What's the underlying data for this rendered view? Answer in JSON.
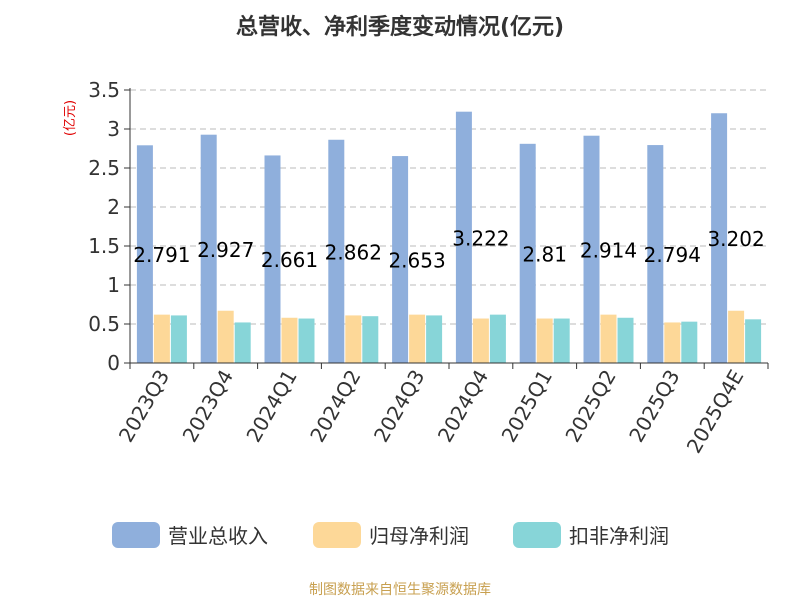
{
  "chart_data": {
    "type": "bar",
    "title": "总营收、净利季度变动情况(亿元)",
    "ylabel": "(亿元)",
    "ylim": [
      0,
      3.5
    ],
    "yticks": [
      0,
      0.5,
      1,
      1.5,
      2,
      2.5,
      3,
      3.5
    ],
    "ytick_labels": [
      "0",
      "0.5",
      "1",
      "1.5",
      "2",
      "2.5",
      "3",
      "3.5"
    ],
    "grid": true,
    "legend_position": "bottom",
    "categories": [
      "2023Q3",
      "2023Q4",
      "2024Q1",
      "2024Q2",
      "2024Q3",
      "2024Q4",
      "2025Q1",
      "2025Q2",
      "2025Q3",
      "2025Q4E"
    ],
    "series": [
      {
        "name": "营业总收入",
        "color": "#8fafdc",
        "values": [
          2.791,
          2.927,
          2.661,
          2.862,
          2.653,
          3.222,
          2.81,
          2.914,
          2.794,
          3.202
        ],
        "data_labels": [
          "2.791",
          "2.927",
          "2.661",
          "2.862",
          "2.653",
          "3.222",
          "2.81",
          "2.914",
          "2.794",
          "3.202"
        ]
      },
      {
        "name": "归母净利润",
        "color": "#fdd898",
        "values": [
          0.62,
          0.67,
          0.58,
          0.61,
          0.62,
          0.57,
          0.57,
          0.62,
          0.52,
          0.67
        ]
      },
      {
        "name": "扣非净利润",
        "color": "#87d5d8",
        "values": [
          0.61,
          0.52,
          0.57,
          0.6,
          0.61,
          0.62,
          0.57,
          0.58,
          0.53,
          0.56
        ]
      }
    ],
    "source": "制图数据来自恒生聚源数据库"
  }
}
